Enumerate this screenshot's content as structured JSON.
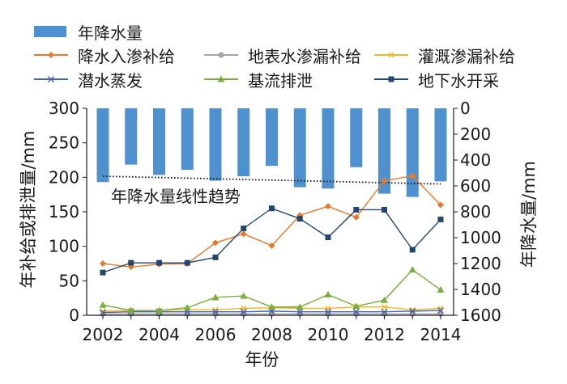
{
  "chart_data": {
    "type": "bar+line",
    "x": [
      2002,
      2003,
      2004,
      2005,
      2006,
      2007,
      2008,
      2009,
      2010,
      2011,
      2012,
      2013,
      2014
    ],
    "x_ticks": [
      "2002",
      "2004",
      "2006",
      "2008",
      "2010",
      "2012",
      "2014"
    ],
    "xlabel": "年份",
    "ylabel_left": "年补给或排泄量/mm",
    "ylabel_right": "年降水量/mm",
    "ylim_left": [
      0,
      300
    ],
    "ylim_right_inverted": [
      0,
      1600
    ],
    "yticks_left": [
      "0",
      "50",
      "100",
      "150",
      "200",
      "250",
      "300"
    ],
    "yticks_right": [
      "0",
      "200",
      "400",
      "600",
      "800",
      "1000",
      "1200",
      "1400",
      "1600"
    ],
    "bar_series": {
      "name": "年降水量",
      "axis": "right",
      "color": "#4f90cf",
      "values": [
        570,
        435,
        515,
        475,
        560,
        525,
        445,
        610,
        620,
        455,
        660,
        685,
        565
      ]
    },
    "series": [
      {
        "name": "降水入渗补给",
        "color": "#e87a2a",
        "marker": "diamond",
        "values": [
          75,
          70,
          74,
          75,
          105,
          118,
          101,
          145,
          158,
          142,
          195,
          202,
          160
        ]
      },
      {
        "name": "地表水渗漏补给",
        "color": "#a6a6a6",
        "marker": "circle",
        "values": [
          2,
          2,
          2,
          2,
          2,
          2,
          2,
          2,
          2,
          2,
          2,
          2,
          2
        ]
      },
      {
        "name": "灌溉渗漏补给",
        "color": "#f0b923",
        "marker": "star",
        "values": [
          6,
          7,
          7,
          8,
          8,
          10,
          11,
          10,
          10,
          12,
          12,
          8,
          10
        ]
      },
      {
        "name": "潜水蒸发",
        "color": "#4a62ae",
        "marker": "x",
        "values": [
          4,
          5,
          5,
          5,
          5,
          5,
          6,
          5,
          5,
          5,
          5,
          6,
          7
        ]
      },
      {
        "name": "基流排泄",
        "color": "#79ad3d",
        "marker": "triangle",
        "values": [
          15,
          7,
          7,
          11,
          26,
          28,
          12,
          12,
          30,
          13,
          22,
          66,
          37
        ]
      },
      {
        "name": "地下水开采",
        "color": "#23466e",
        "marker": "square",
        "values": [
          62,
          76,
          76,
          76,
          84,
          126,
          155,
          140,
          113,
          153,
          153,
          95,
          139
        ]
      }
    ],
    "trendline": {
      "label": "年降水量线性趋势",
      "axis": "right",
      "values": [
        525,
        585
      ],
      "style": "dotted"
    },
    "grid": false
  }
}
